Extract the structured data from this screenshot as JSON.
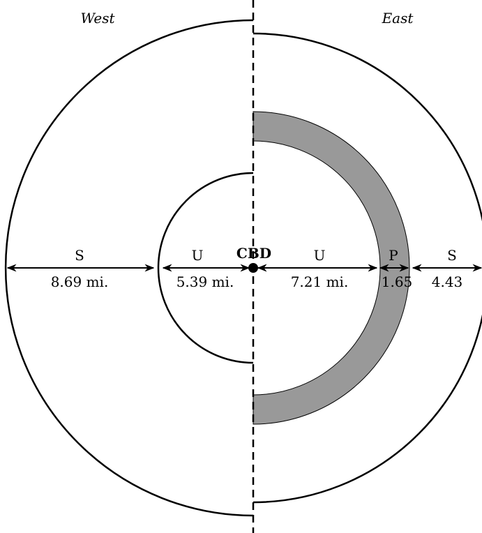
{
  "sides": {
    "west": "West",
    "east": "East"
  },
  "center": {
    "label": "CBD"
  },
  "colors": {
    "ink": "#000000",
    "ring_fill": "#999999",
    "background": "#ffffff"
  },
  "west": [
    {
      "zone": "S",
      "distance": "8.69 mi."
    },
    {
      "zone": "U",
      "distance": "5.39 mi."
    }
  ],
  "east": [
    {
      "zone": "U",
      "distance": "7.21 mi."
    },
    {
      "zone": "P",
      "distance": "1.65"
    },
    {
      "zone": "S",
      "distance": "4.43"
    }
  ]
}
